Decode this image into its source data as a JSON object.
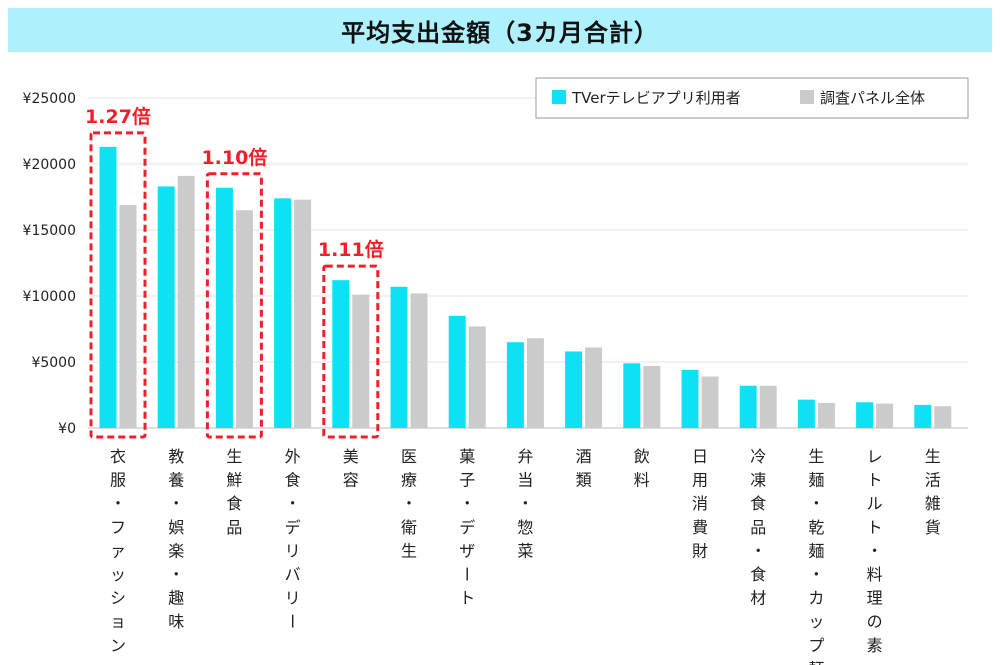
{
  "title": "平均支出金額（3カ月合計）",
  "chart_data": {
    "type": "bar",
    "title": "平均支出金額（3カ月合計）",
    "ylim": [
      0,
      25000
    ],
    "yticks": [
      "¥0",
      "¥5000",
      "¥10000",
      "¥15000",
      "¥20000",
      "¥25000"
    ],
    "ytick_values": [
      0,
      5000,
      10000,
      15000,
      20000,
      25000
    ],
    "categories": [
      "衣服・ファッション",
      "教養・娯楽・趣味",
      "生鮮食品",
      "外食・デリバリー",
      "美容",
      "医療・衛生",
      "菓子・デザート",
      "弁当・惣菜",
      "酒類",
      "飲料",
      "日用消費財",
      "冷凍食品・食材",
      "生麺・乾麺・カップ麺",
      "レトルト・料理の素",
      "生活雑貨"
    ],
    "series": [
      {
        "name": "TVerテレビアプリ利用者",
        "color": "#0fe1f5",
        "values": [
          21300,
          18300,
          18200,
          17400,
          11200,
          10700,
          8500,
          6500,
          5800,
          4900,
          4400,
          3200,
          2150,
          1950,
          1750
        ]
      },
      {
        "name": "調査パネル全体",
        "color": "#cbcbcb",
        "values": [
          16900,
          19100,
          16500,
          17300,
          10100,
          10200,
          7700,
          6800,
          6100,
          4700,
          3900,
          3200,
          1900,
          1850,
          1650
        ]
      }
    ],
    "legend": "top-right",
    "grid": true,
    "annotations": [
      {
        "category": "衣服・ファッション",
        "label": "1.27倍"
      },
      {
        "category": "生鮮食品",
        "label": "1.10倍"
      },
      {
        "category": "美容",
        "label": "1.11倍"
      }
    ],
    "annotation_color": "#f0202a"
  }
}
